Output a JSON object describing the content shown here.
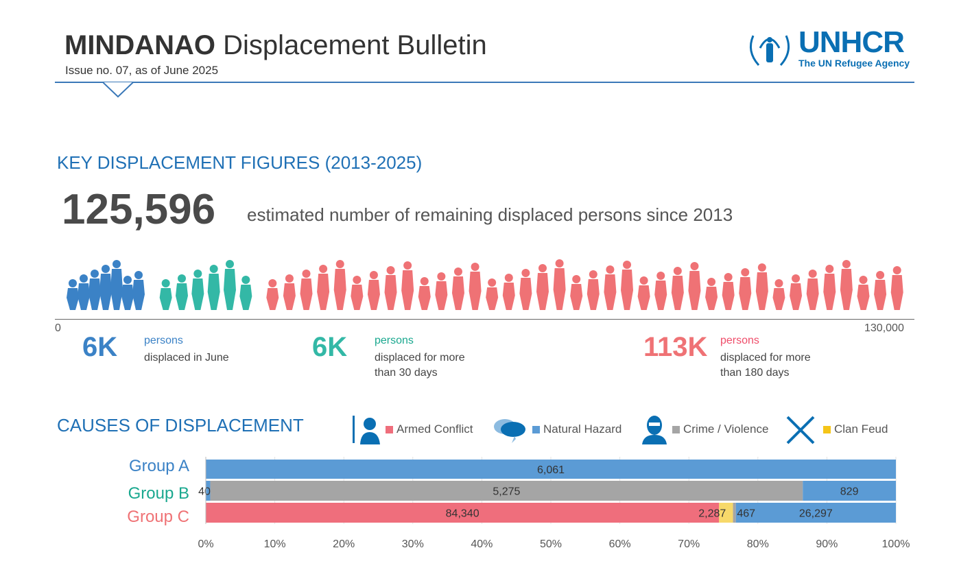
{
  "header": {
    "title_bold": "MINDANAO",
    "title_rest": "Displacement Bulletin",
    "issue": "Issue no. 07, as of June 2025",
    "logo_text": "UNHCR",
    "logo_sub": "The UN Refugee Agency"
  },
  "key": {
    "title": "KEY DISPLACEMENT FIGURES (2013-2025)",
    "total": "125,596",
    "total_desc": "estimated number of remaining displaced persons since 2013",
    "axis_min": "0",
    "axis_max": "130,000",
    "figures": [
      {
        "value": "6K",
        "unit": "persons",
        "desc": "displaced in June",
        "color": "#3b82c6"
      },
      {
        "value": "6K",
        "unit": "persons",
        "desc": "displaced for more than 30 days",
        "color": "#33b8a6"
      },
      {
        "value": "113K",
        "unit": "persons",
        "desc": "displaced for more than 180 days",
        "color": "#ef7275"
      }
    ]
  },
  "causes": {
    "title": "CAUSES OF DISPLACEMENT",
    "legend": [
      {
        "label": "Armed Conflict",
        "color": "#ef6e7c",
        "icon": "soldier-icon"
      },
      {
        "label": "Natural Hazard",
        "color": "#5b9bd5",
        "icon": "storm-cloud-icon"
      },
      {
        "label": "Crime / Violence",
        "color": "#a5a5a5",
        "icon": "masked-person-icon"
      },
      {
        "label": "Clan Feud",
        "color": "#f5c518",
        "icon": "crossed-rifles-icon"
      }
    ]
  },
  "chart_data": {
    "type": "bar",
    "orientation": "horizontal",
    "stacked": "100%",
    "categories": [
      "Group A",
      "Group B",
      "Group C"
    ],
    "category_colors": [
      "#3b82c6",
      "#1aa88f",
      "#ef7275"
    ],
    "xlim": [
      0,
      100
    ],
    "x_ticks": [
      "0%",
      "10%",
      "20%",
      "30%",
      "40%",
      "50%",
      "60%",
      "70%",
      "80%",
      "90%",
      "100%"
    ],
    "grid": true,
    "bars": [
      {
        "category": "Group A",
        "segments": [
          {
            "value": 6061,
            "label": "6,061",
            "color": "#5b9bd5"
          }
        ]
      },
      {
        "category": "Group B",
        "segments": [
          {
            "value": 40,
            "label": "40",
            "color": "#5b9bd5"
          },
          {
            "value": 5275,
            "label": "5,275",
            "color": "#a5a5a5"
          },
          {
            "value": 829,
            "label": "829",
            "color": "#5b9bd5"
          }
        ]
      },
      {
        "category": "Group C",
        "segments": [
          {
            "value": 84340,
            "label": "84,340",
            "color": "#ef6e7c"
          },
          {
            "value": 2287,
            "label": "2,287",
            "color": "#f7d96a"
          },
          {
            "value": 467,
            "label": "467",
            "color": "#a5a5a5"
          },
          {
            "value": 26297,
            "label": "26,297",
            "color": "#5b9bd5"
          }
        ]
      }
    ]
  }
}
